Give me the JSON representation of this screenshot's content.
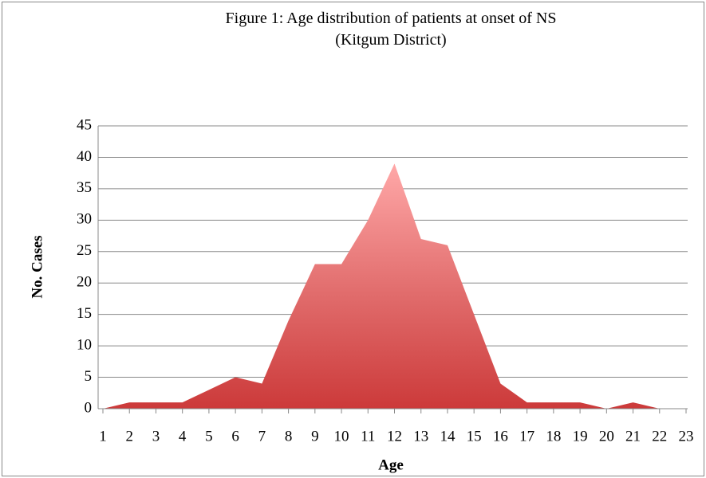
{
  "chart_data": {
    "type": "area",
    "title": "Figure 1: Age distribution of patients at onset of NS (Kitgum District)",
    "xlabel": "Age",
    "ylabel": "No. Cases",
    "x": [
      1,
      2,
      3,
      4,
      5,
      6,
      7,
      8,
      9,
      10,
      11,
      12,
      13,
      14,
      15,
      16,
      17,
      18,
      19,
      20,
      21,
      22
    ],
    "y": [
      0,
      1,
      1,
      1,
      3,
      5,
      4,
      14,
      23,
      23,
      30,
      39,
      27,
      26,
      15,
      4,
      1,
      1,
      1,
      0,
      1,
      0
    ],
    "color": "#d04040",
    "xlim": [
      1,
      23
    ],
    "xticks": [
      1,
      2,
      3,
      4,
      5,
      6,
      7,
      8,
      9,
      10,
      11,
      12,
      13,
      14,
      15,
      16,
      17,
      18,
      19,
      20,
      21,
      22,
      23
    ],
    "ylim": [
      0,
      45
    ],
    "yticks": [
      0,
      5,
      10,
      15,
      20,
      25,
      30,
      35,
      40,
      45
    ],
    "grid": true
  }
}
